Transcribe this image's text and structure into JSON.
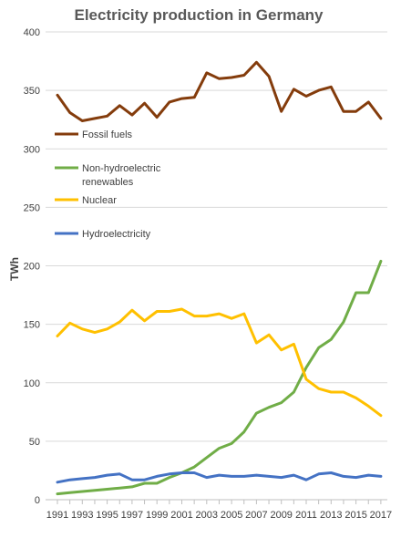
{
  "chart_data": {
    "type": "line",
    "title": "Electricity production in Germany",
    "xlabel": "",
    "ylabel": "TWh",
    "ylim": [
      0,
      400
    ],
    "yticks": [
      0,
      50,
      100,
      150,
      200,
      250,
      300,
      350,
      400
    ],
    "xtick_labels": [
      "1991",
      "1993",
      "1995",
      "1997",
      "1999",
      "2001",
      "2003",
      "2005",
      "2007",
      "2009",
      "2011",
      "2013",
      "2015",
      "2017"
    ],
    "grid": "horizontal",
    "legend_placement": "left, upper middle",
    "x": [
      1991,
      1992,
      1993,
      1994,
      1995,
      1996,
      1997,
      1998,
      1999,
      2000,
      2001,
      2002,
      2003,
      2004,
      2005,
      2006,
      2007,
      2008,
      2009,
      2010,
      2011,
      2012,
      2013,
      2014,
      2015,
      2016,
      2017
    ],
    "series": [
      {
        "name": "Fossil fuels",
        "color": "#843c0c",
        "values": [
          346,
          331,
          324,
          326,
          328,
          337,
          329,
          339,
          327,
          340,
          343,
          344,
          365,
          360,
          361,
          363,
          374,
          362,
          332,
          351,
          345,
          350,
          353,
          332,
          332,
          340,
          326
        ]
      },
      {
        "name": "Non-hydroelectric renewables",
        "color": "#70ad47",
        "values": [
          5,
          6,
          7,
          8,
          9,
          10,
          11,
          14,
          14,
          19,
          23,
          28,
          36,
          44,
          48,
          58,
          74,
          79,
          83,
          92,
          113,
          130,
          137,
          152,
          177,
          177,
          204
        ]
      },
      {
        "name": "Nuclear",
        "color": "#ffc000",
        "values": [
          140,
          151,
          146,
          143,
          146,
          152,
          162,
          153,
          161,
          161,
          163,
          157,
          157,
          159,
          155,
          159,
          134,
          141,
          128,
          133,
          103,
          95,
          92,
          92,
          87,
          80,
          72
        ]
      },
      {
        "name": "Hydroelectricity",
        "color": "#4472c4",
        "values": [
          15,
          17,
          18,
          19,
          21,
          22,
          17,
          17,
          20,
          22,
          23,
          23,
          19,
          21,
          20,
          20,
          21,
          20,
          19,
          21,
          17,
          22,
          23,
          20,
          19,
          21,
          20
        ]
      }
    ]
  }
}
